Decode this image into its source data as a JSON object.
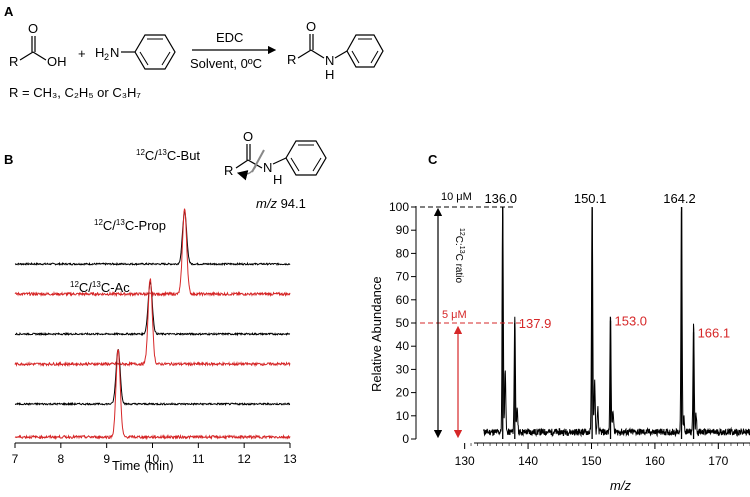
{
  "colors": {
    "black": "#000000",
    "red": "#d62728"
  },
  "panel_a": {
    "label": "A",
    "acid": {
      "r": "R",
      "oh": "OH"
    },
    "plus": "+",
    "amine_prefix": "H",
    "amine_sub": "2",
    "amine_suffix": "N",
    "reagent": "EDC",
    "conditions": "Solvent, 0ºC",
    "product": {
      "r": "R",
      "n": "N",
      "h": "H"
    },
    "r_definition": "R = CH₃, C₂H₅ or C₃H₇"
  },
  "panel_b_fragment": {
    "r": "R",
    "n": "N",
    "h": "H",
    "mz_prefix": "m/z",
    "mz_value": "94.1"
  },
  "chart_data": [
    {
      "panel": "B",
      "type": "line",
      "xlabel": "Time (min)",
      "xlim": [
        7,
        13
      ],
      "x_ticks": [
        "7",
        "8",
        "9",
        "10",
        "11",
        "12",
        "13"
      ],
      "peak_labels": [
        {
          "sup": "12",
          "mid": "C/",
          "sup2": "13",
          "end": "C-Ac"
        },
        {
          "sup": "12",
          "mid": "C/",
          "sup2": "13",
          "end": "C-Prop"
        },
        {
          "sup": "12",
          "mid": "C/",
          "sup2": "13",
          "end": "C-But"
        }
      ],
      "series": [
        {
          "color": "black",
          "peak_time": 10.7,
          "peak_height": 0.95
        },
        {
          "color": "red",
          "peak_time": 10.7,
          "peak_height": 1.55
        },
        {
          "color": "black",
          "peak_time": 9.95,
          "peak_height": 0.95
        },
        {
          "color": "red",
          "peak_time": 9.95,
          "peak_height": 1.55
        },
        {
          "color": "black",
          "peak_time": 9.25,
          "peak_height": 1.0
        },
        {
          "color": "red",
          "peak_time": 9.25,
          "peak_height": 1.6
        }
      ]
    },
    {
      "panel": "C",
      "type": "bar",
      "xlabel": "m/z",
      "ylabel": "Relative Abundance",
      "xlim": [
        128,
        175
      ],
      "ylim": [
        0,
        100
      ],
      "x_ticks": [
        "130",
        "140",
        "150",
        "160",
        "170"
      ],
      "y_ticks": [
        "0",
        "10",
        "20",
        "30",
        "40",
        "50",
        "60",
        "70",
        "80",
        "90",
        "100"
      ],
      "peaks": [
        {
          "mz": 136.0,
          "abundance": 100,
          "label": "136.0",
          "color": "black"
        },
        {
          "mz": 137.9,
          "abundance": 50,
          "label": "137.9",
          "color": "red"
        },
        {
          "mz": 150.1,
          "abundance": 100,
          "label": "150.1",
          "color": "black"
        },
        {
          "mz": 153.0,
          "abundance": 51,
          "label": "153.0",
          "color": "red"
        },
        {
          "mz": 164.2,
          "abundance": 100,
          "label": "164.2",
          "color": "black"
        },
        {
          "mz": 166.1,
          "abundance": 46,
          "label": "166.1",
          "color": "red"
        }
      ],
      "annotations": {
        "conc_high": "10 μM",
        "conc_low": "5 μM",
        "ratio_sup1": "12",
        "ratio_mid": "C:",
        "ratio_sup2": "13",
        "ratio_end": "C ratio"
      }
    }
  ]
}
